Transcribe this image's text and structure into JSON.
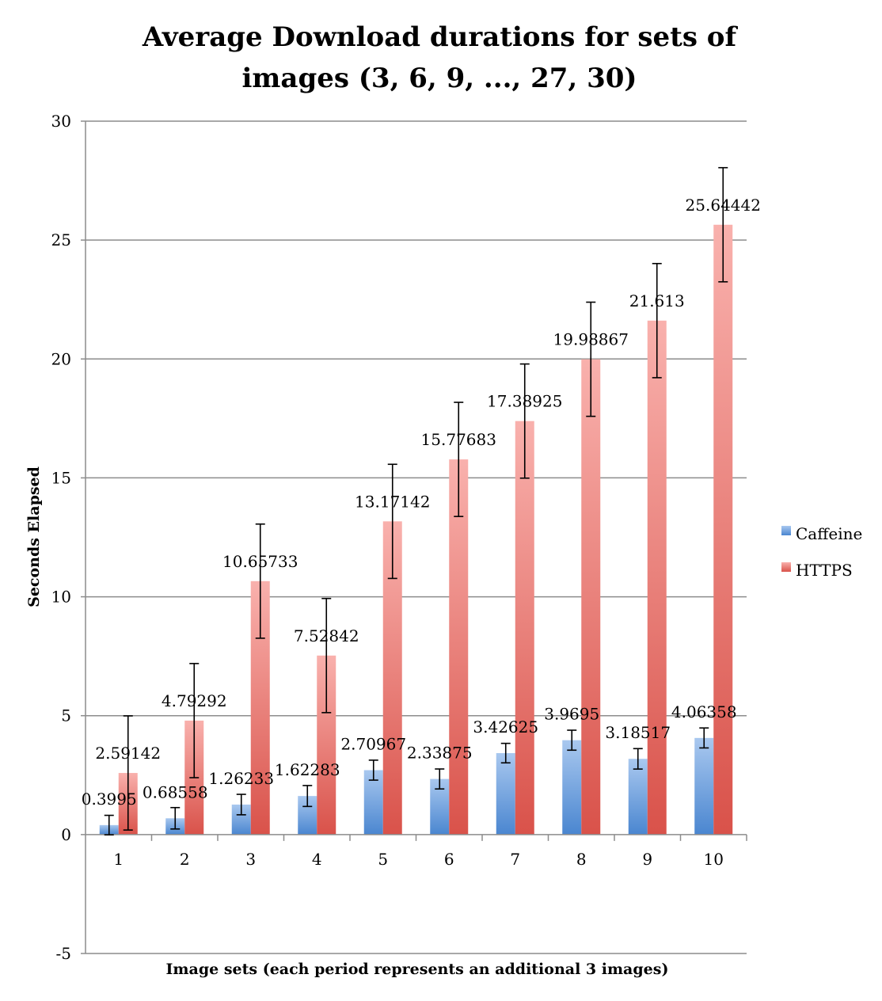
{
  "chart_data": {
    "type": "bar",
    "title_lines": [
      "Average Download durations for sets of",
      "images (3, 6, 9, ..., 27, 30)"
    ],
    "xlabel": "Image sets (each period represents an additional 3 images)",
    "ylabel": "Seconds Elapsed",
    "ylim": [
      -5,
      30
    ],
    "yticks": [
      -5,
      0,
      5,
      10,
      15,
      20,
      25,
      30
    ],
    "grid": true,
    "legend_position": "right",
    "categories": [
      "1",
      "2",
      "3",
      "4",
      "5",
      "6",
      "7",
      "8",
      "9",
      "10"
    ],
    "series": [
      {
        "name": "Caffeine",
        "color_top": "#a9c8ef",
        "color_bottom": "#4a86d0",
        "values": [
          0.3995,
          0.68558,
          1.26233,
          1.62283,
          2.70967,
          2.33875,
          3.42625,
          3.9695,
          3.18517,
          4.06358
        ],
        "labels": [
          "0.3995",
          "0.68558",
          "1.26233",
          "1.62283",
          "2.70967",
          "2.33875",
          "3.42625",
          "3.9695",
          "3.18517",
          "4.06358"
        ],
        "error": [
          0.41,
          0.45,
          0.43,
          0.44,
          0.42,
          0.42,
          0.41,
          0.42,
          0.43,
          0.42
        ]
      },
      {
        "name": "HTTPS",
        "color_top": "#f9b1ad",
        "color_bottom": "#d9524a",
        "values": [
          2.59142,
          4.79292,
          10.65733,
          7.52842,
          13.17142,
          15.77683,
          17.38925,
          19.98867,
          21.613,
          25.64442
        ],
        "labels": [
          "2.59142",
          "4.79292",
          "10.65733",
          "7.52842",
          "13.17142",
          "15.77683",
          "17.38925",
          "19.98867",
          "21.613",
          "25.64442"
        ],
        "error": [
          2.4,
          2.4,
          2.4,
          2.4,
          2.4,
          2.4,
          2.4,
          2.4,
          2.4,
          2.4
        ]
      }
    ]
  }
}
